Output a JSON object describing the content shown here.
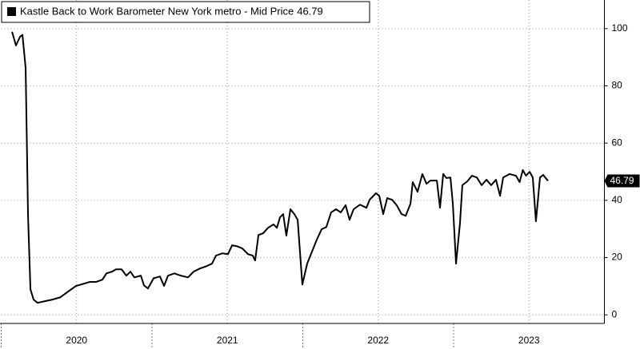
{
  "chart_data": {
    "type": "line",
    "series": [
      {
        "name": "Kastle Back to Work Barometer New York metro - Mid Price",
        "color": "#000000",
        "x": [
          2020.072,
          2020.098,
          2020.125,
          2020.141,
          2020.162,
          2020.178,
          2020.194,
          2020.215,
          2020.241,
          2020.284,
          2020.337,
          2020.39,
          2020.443,
          2020.496,
          2020.549,
          2020.586,
          2020.629,
          2020.671,
          2020.698,
          2020.735,
          2020.761,
          2020.798,
          2020.83,
          2020.857,
          2020.883,
          2020.926,
          2020.947,
          2020.973,
          2021.011,
          2021.053,
          2021.08,
          2021.106,
          2021.149,
          2021.191,
          2021.239,
          2021.276,
          2021.318,
          2021.361,
          2021.398,
          2021.424,
          2021.467,
          2021.504,
          2021.531,
          2021.562,
          2021.599,
          2021.637,
          2021.668,
          2021.684,
          2021.706,
          2021.737,
          2021.769,
          2021.806,
          2021.828,
          2021.849,
          2021.87,
          2021.891,
          2021.918,
          2021.944,
          2021.966,
          2021.997,
          2022.029,
          2022.061,
          2022.093,
          2022.125,
          2022.156,
          2022.188,
          2022.22,
          2022.252,
          2022.284,
          2022.31,
          2022.337,
          2022.379,
          2022.422,
          2022.443,
          2022.485,
          2022.507,
          2022.533,
          2022.56,
          2022.592,
          2022.623,
          2022.655,
          2022.682,
          2022.714,
          2022.729,
          2022.761,
          2022.793,
          2022.82,
          2022.846,
          2022.889,
          2022.91,
          2022.931,
          2022.952,
          2022.979,
          2022.995,
          2023.016,
          2023.042,
          2023.058,
          2023.09,
          2023.122,
          2023.154,
          2023.186,
          2023.218,
          2023.249,
          2023.281,
          2023.308,
          2023.329,
          2023.371,
          2023.414,
          2023.438,
          2023.459,
          2023.48,
          2023.504,
          2023.525,
          2023.546,
          2023.573,
          2023.594,
          2023.626
        ],
        "values": [
          98.9,
          94.1,
          97.2,
          97.8,
          86.3,
          34.6,
          8.9,
          5.3,
          4.2,
          4.7,
          5.3,
          6.1,
          8.1,
          10.1,
          10.9,
          11.5,
          11.5,
          12.3,
          14.5,
          15.1,
          15.9,
          15.9,
          13.7,
          15.1,
          13.1,
          13.7,
          10.3,
          9.2,
          12.8,
          13.4,
          10.1,
          13.7,
          14.5,
          13.7,
          13.1,
          15.1,
          16.2,
          17.0,
          17.9,
          20.7,
          21.5,
          21.2,
          24.3,
          24.0,
          23.2,
          21.2,
          20.7,
          19.0,
          27.9,
          28.5,
          30.4,
          31.6,
          30.4,
          34.1,
          35.2,
          27.7,
          36.9,
          35.2,
          33.2,
          10.6,
          17.9,
          22.1,
          26.3,
          29.9,
          30.7,
          35.8,
          36.9,
          35.8,
          38.3,
          33.2,
          36.9,
          38.5,
          37.4,
          40.2,
          42.5,
          41.6,
          35.2,
          40.8,
          40.2,
          38.3,
          35.2,
          34.6,
          38.8,
          46.4,
          43.0,
          49.2,
          45.8,
          46.9,
          46.9,
          37.4,
          49.2,
          47.8,
          48.0,
          38.8,
          17.9,
          31.8,
          45.3,
          46.6,
          48.6,
          48.0,
          45.3,
          47.2,
          45.3,
          47.2,
          41.6,
          48.0,
          49.2,
          48.6,
          46.4,
          50.6,
          48.6,
          50.0,
          48.0,
          32.7,
          48.0,
          48.9,
          46.79
        ]
      }
    ],
    "xlim": [
      2020,
      2024
    ],
    "xticks": [
      {
        "value": 2020.5,
        "label": "2020"
      },
      {
        "value": 2021.5,
        "label": "2021"
      },
      {
        "value": 2022.5,
        "label": "2022"
      },
      {
        "value": 2023.5,
        "label": "2023"
      }
    ],
    "ylim": [
      -3,
      110
    ],
    "yticks": [
      0,
      20,
      40,
      60,
      80,
      100
    ],
    "grid": true
  }
}
